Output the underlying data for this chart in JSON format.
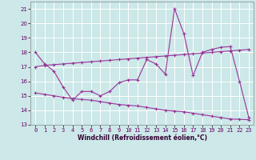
{
  "xlabel": "Windchill (Refroidissement éolien,°C)",
  "bg_color": "#cce8e8",
  "line_color": "#993399",
  "grid_color": "#ffffff",
  "x_data": [
    0,
    1,
    2,
    3,
    4,
    5,
    6,
    7,
    8,
    9,
    10,
    11,
    12,
    13,
    14,
    15,
    16,
    17,
    18,
    19,
    20,
    21,
    22,
    23
  ],
  "y_spike": [
    18.0,
    17.2,
    16.7,
    15.6,
    14.7,
    15.3,
    15.3,
    15.0,
    15.3,
    15.9,
    16.1,
    16.1,
    17.5,
    17.2,
    16.5,
    21.0,
    19.3,
    16.4,
    18.0,
    18.2,
    18.35,
    18.4,
    16.0,
    13.5
  ],
  "y_upper": [
    17.0,
    17.1,
    17.15,
    17.2,
    17.25,
    17.3,
    17.35,
    17.4,
    17.45,
    17.5,
    17.55,
    17.6,
    17.65,
    17.7,
    17.75,
    17.8,
    17.85,
    17.9,
    17.95,
    18.0,
    18.05,
    18.1,
    18.15,
    18.2
  ],
  "y_lower": [
    15.2,
    15.1,
    15.0,
    14.9,
    14.8,
    14.75,
    14.7,
    14.6,
    14.5,
    14.4,
    14.35,
    14.3,
    14.2,
    14.1,
    14.0,
    13.95,
    13.9,
    13.8,
    13.7,
    13.6,
    13.5,
    13.4,
    13.38,
    13.35
  ],
  "ylim": [
    13,
    21.5
  ],
  "yticks": [
    13,
    14,
    15,
    16,
    17,
    18,
    19,
    20,
    21
  ],
  "xticks": [
    0,
    1,
    2,
    3,
    4,
    5,
    6,
    7,
    8,
    9,
    10,
    11,
    12,
    13,
    14,
    15,
    16,
    17,
    18,
    19,
    20,
    21,
    22,
    23
  ],
  "tick_fontsize": 5.0,
  "xlabel_fontsize": 5.5,
  "lw": 0.8,
  "ms": 3.5
}
